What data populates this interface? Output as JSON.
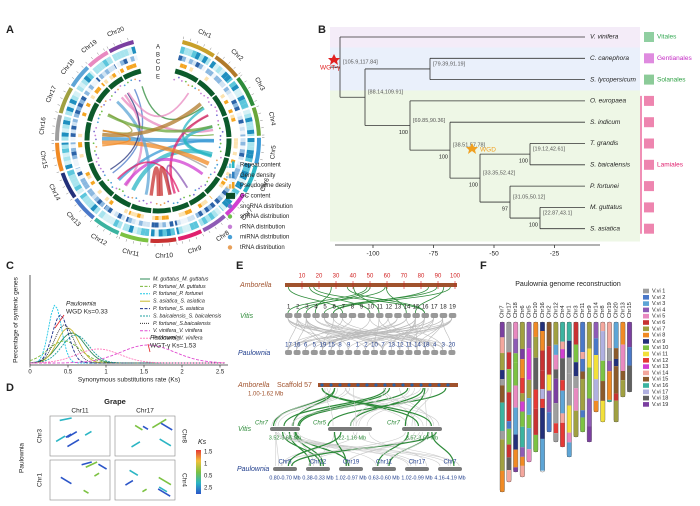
{
  "panels": [
    "A",
    "B",
    "C",
    "D",
    "E",
    "F"
  ],
  "circos": {
    "chromosomes": [
      "Chr1",
      "Chr2",
      "Chr3",
      "Chr4",
      "Chr5",
      "Chr6",
      "Chr7",
      "Chr8",
      "Chr9",
      "Chr10",
      "Chr11",
      "Chr12",
      "Chr13",
      "Chr14",
      "Chr15",
      "Chr16",
      "Chr17",
      "Chr18",
      "Chr19",
      "Chr20"
    ],
    "tracks": [
      "A",
      "B",
      "C",
      "D",
      "E"
    ],
    "legend": [
      "Repeat content",
      "Gene density",
      "Pseudogene desity",
      "GC content",
      "snoRNA distribution",
      "snRNA distribution",
      "rRNA distribution",
      "miRNA distribution",
      "tRNA distribution"
    ],
    "legend_colors": [
      "#2bb5c4",
      "#2f7fc1",
      "#f0a020",
      "#0b4d27",
      "#7a6fd1",
      "#6fbf4a",
      "#c67fd6",
      "#4aa0d6",
      "#e8a05a"
    ]
  },
  "tree": {
    "species": [
      "V. vinifera",
      "C. canephora",
      "S. lycopersicum",
      "O. europaea",
      "S. indicum",
      "T. grandis",
      "S. baicalensis",
      "P. fortunei",
      "M. guttatus",
      "S. asiatica"
    ],
    "orders": [
      {
        "name": "Vitales",
        "color": "#34a853"
      },
      {
        "name": "Gentianales",
        "color": "#c42bc4"
      },
      {
        "name": "Solanales",
        "color": "#2ea043"
      },
      {
        "name": "Lamiales",
        "color": "#e0206e"
      }
    ],
    "node_ranges": [
      "[105.9,117.84]",
      "[79.39,91.19]",
      "[88.14,109.91]",
      "[69.85,90.36]",
      "[38.51,57.78]",
      "[19.12,42.61]",
      "[33.35,52.42]",
      "[31.05,50.12]",
      "[22.87,43.1]"
    ],
    "bootstrap": [
      100,
      100,
      100,
      100,
      97,
      100
    ],
    "events": [
      "WGT-γ",
      "WGD"
    ],
    "axis_ticks": [
      -100,
      -75,
      -50,
      -25
    ]
  },
  "synteny_ks": {
    "ylabel": "Percentage of syntenic genes",
    "xlabel": "Synonymous substitutions rate (Ks)",
    "xticks": [
      0,
      0.5,
      1,
      1.5,
      2,
      2.5
    ],
    "series": [
      {
        "name": "M. guttatus_M. guttatus",
        "color": "#2e8b57"
      },
      {
        "name": "P. fortunei_M. guttatus",
        "color": "#7ab83a"
      },
      {
        "name": "P. fortunei_P. fortunei",
        "color": "#1ec8e6"
      },
      {
        "name": "S. asiatica_S. asiatica",
        "color": "#c8b830"
      },
      {
        "name": "P. fortunei_S. asiatica",
        "color": "#1a2f8a"
      },
      {
        "name": "S. baicalensis_S. baicalensis",
        "color": "#20a0a0"
      },
      {
        "name": "P. fortunei_S.baicalensis",
        "color": "#333333"
      },
      {
        "name": "V. vinifera_V. vinifera",
        "color": "#e04ad0"
      },
      {
        "name": "P. fortunei_V. vinifera",
        "color": "#ff80c0"
      }
    ],
    "annotations": [
      "Paulownia",
      "WGD Ks=0.33",
      "Paulownia",
      "WGT-γ Ks=1.53"
    ]
  },
  "dotplot": {
    "title": "Grape",
    "columns": [
      "Chr11",
      "Chr17"
    ],
    "row_title": "Paulownia",
    "rows": [
      "Chr3",
      "Chr1"
    ],
    "rows_right": [
      "Chr8",
      "Chr4"
    ],
    "ks_label": "Ks",
    "ks_ticks": [
      "1.5",
      "1",
      "0.5",
      "2.5"
    ]
  },
  "microsynteny": {
    "top": {
      "amborella": "Amborella",
      "amborella_ticks": [
        10,
        20,
        30,
        40,
        50,
        60,
        70,
        80,
        90,
        100
      ],
      "vitis": "Vitis",
      "vitis_chrs": [
        1,
        2,
        3,
        4,
        5,
        6,
        7,
        8,
        9,
        10,
        11,
        12,
        13,
        14,
        15,
        16,
        17,
        18,
        19
      ],
      "paulownia": "Paulownia",
      "paulownia_chrs": [
        17,
        16,
        6,
        5,
        19,
        15,
        8,
        9,
        1,
        2,
        10,
        7,
        13,
        12,
        11,
        14,
        18,
        4,
        3,
        20
      ]
    },
    "bottom": {
      "amborella": "Amborella",
      "scaffold": "Scaffold 57",
      "scaffold_range": "1.00-1.62 Mb",
      "vitis": "Vitis",
      "vitis_segments": [
        {
          "chr": "Chr7",
          "range": "3.52-3.66 Mb"
        },
        {
          "chr": "Chr5",
          "range": "1.22-1.16 Mb"
        },
        {
          "chr": "Chr7",
          "range": "3.57-3.67 Mb"
        }
      ],
      "paulownia": "Paulownia",
      "paulownia_segments": [
        {
          "chr": "Chr5",
          "range": "0.80-0.70 Mb"
        },
        {
          "chr": "Chr12",
          "range": "0.38-0.33 Mb"
        },
        {
          "chr": "Chr19",
          "range": "1.02-0.97 Mb"
        },
        {
          "chr": "Chr11",
          "range": "0.63-0.60 Mb"
        },
        {
          "chr": "Chr17",
          "range": "1.02-0.99 Mb"
        },
        {
          "chr": "Chr7",
          "range": "4.16-4.19 Mb"
        }
      ]
    }
  },
  "reconstruction": {
    "title": "Paulownia genome reconstruction",
    "chromosomes": [
      "Chr7",
      "Chr17",
      "Chr18",
      "Chr6",
      "Chr5",
      "Chr10",
      "Chr16",
      "Chr2",
      "Chr12",
      "Chr4",
      "Chr1",
      "Chr3",
      "Chr11",
      "Chr9",
      "Chr14",
      "Chr8",
      "Chr19",
      "Chr20",
      "Chr13",
      "Chr15"
    ],
    "legend": [
      "V.vi 1",
      "V.vi 2",
      "V.vi 3",
      "V.vi 4",
      "V.vi 5",
      "V.vi 6",
      "V.vi 7",
      "V.vi 8",
      "V.vi 9",
      "V.vi 10",
      "V.vi 11",
      "V.vi 12",
      "V.vi 13",
      "V.vi 14",
      "V.vi 15",
      "V.vi 16",
      "V.vi 17",
      "V.vi 18",
      "V.vi 19"
    ],
    "colors": [
      "#9e9e9e",
      "#4a78c8",
      "#5da5d6",
      "#8e5bb5",
      "#e889c0",
      "#c83232",
      "#a0a040",
      "#f08a24",
      "#23307a",
      "#7cc242",
      "#f2e03a",
      "#e53935",
      "#d13fd1",
      "#f4a79d",
      "#8b5a2b",
      "#3bb3a0",
      "#b0b0e0",
      "#606060",
      "#7b3fa0"
    ]
  }
}
